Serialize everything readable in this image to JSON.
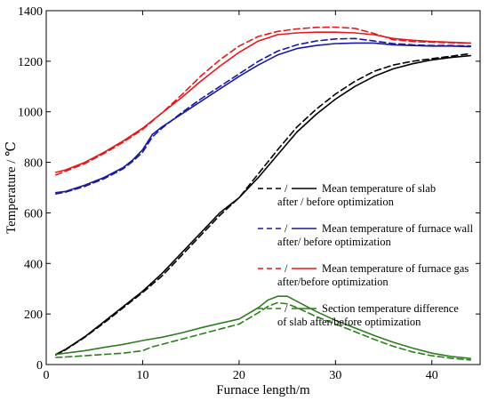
{
  "chart_data": {
    "type": "line",
    "xlabel": "Furnace length/m",
    "ylabel": "Temperature / ℃",
    "xlim": [
      0,
      45
    ],
    "ylim": [
      0,
      1400
    ],
    "xticks": [
      0,
      10,
      20,
      30,
      40
    ],
    "yticks": [
      0,
      200,
      400,
      600,
      800,
      1000,
      1200,
      1400
    ],
    "grid": false,
    "legend_position": "center-right",
    "legend": [
      {
        "marker": "/",
        "lines": [
          "Mean temperature of slab",
          "after / before optimization"
        ],
        "color": "#000000"
      },
      {
        "marker": "/",
        "lines": [
          "Mean temperature of furnace wall",
          "after/ before  optimization"
        ],
        "color": "#1a1a9e"
      },
      {
        "marker": "/",
        "lines": [
          "Mean temperature of furnace gas",
          "after/before optimization"
        ],
        "color": "#e31a1c"
      },
      {
        "marker": "/",
        "lines": [
          "Section temperature difference",
          "of slab after/before optimization"
        ],
        "color": "#2e7d1f"
      }
    ],
    "series": [
      {
        "key": "slab_after",
        "color": "#000000",
        "dash": false,
        "x": [
          1,
          2,
          4,
          6,
          8,
          10,
          12,
          14,
          16,
          18,
          20,
          22,
          24,
          26,
          28,
          30,
          32,
          34,
          36,
          38,
          40,
          42,
          44
        ],
        "y": [
          40,
          60,
          110,
          170,
          230,
          290,
          360,
          440,
          520,
          600,
          660,
          740,
          830,
          920,
          990,
          1050,
          1100,
          1140,
          1170,
          1190,
          1205,
          1215,
          1222
        ]
      },
      {
        "key": "slab_before",
        "color": "#000000",
        "dash": true,
        "x": [
          1,
          2,
          4,
          6,
          8,
          10,
          12,
          14,
          16,
          18,
          20,
          22,
          24,
          26,
          28,
          30,
          32,
          34,
          36,
          38,
          40,
          42,
          44
        ],
        "y": [
          38,
          58,
          108,
          165,
          225,
          285,
          350,
          430,
          510,
          590,
          660,
          755,
          850,
          940,
          1010,
          1070,
          1120,
          1160,
          1185,
          1200,
          1210,
          1220,
          1230
        ]
      },
      {
        "key": "wall_after",
        "color": "#1a1a9e",
        "dash": false,
        "x": [
          1,
          2,
          4,
          6,
          8,
          9,
          10,
          11,
          12,
          14,
          16,
          18,
          20,
          22,
          24,
          26,
          28,
          30,
          32,
          34,
          36,
          38,
          40,
          42,
          44
        ],
        "y": [
          680,
          685,
          710,
          740,
          780,
          810,
          850,
          910,
          940,
          990,
          1040,
          1090,
          1140,
          1185,
          1225,
          1250,
          1262,
          1270,
          1272,
          1272,
          1265,
          1262,
          1260,
          1260,
          1258
        ]
      },
      {
        "key": "wall_before",
        "color": "#1a1a9e",
        "dash": true,
        "x": [
          1,
          2,
          4,
          6,
          8,
          9,
          10,
          11,
          12,
          14,
          16,
          18,
          20,
          22,
          24,
          26,
          28,
          30,
          32,
          34,
          36,
          38,
          40,
          42,
          44
        ],
        "y": [
          675,
          682,
          705,
          735,
          775,
          805,
          840,
          900,
          935,
          995,
          1050,
          1100,
          1150,
          1200,
          1240,
          1265,
          1280,
          1288,
          1290,
          1280,
          1270,
          1265,
          1262,
          1262,
          1260
        ]
      },
      {
        "key": "gas_after",
        "color": "#e31a1c",
        "dash": false,
        "x": [
          1,
          2,
          4,
          6,
          8,
          10,
          12,
          14,
          16,
          18,
          20,
          22,
          24,
          26,
          28,
          30,
          32,
          34,
          36,
          38,
          40,
          42,
          44
        ],
        "y": [
          760,
          770,
          800,
          840,
          885,
          935,
          995,
          1055,
          1120,
          1180,
          1235,
          1280,
          1305,
          1312,
          1315,
          1315,
          1312,
          1305,
          1290,
          1283,
          1278,
          1275,
          1272
        ]
      },
      {
        "key": "gas_before",
        "color": "#e31a1c",
        "dash": true,
        "x": [
          1,
          2,
          4,
          6,
          8,
          10,
          12,
          14,
          16,
          18,
          20,
          22,
          24,
          26,
          28,
          30,
          32,
          34,
          36,
          38,
          40,
          42,
          44
        ],
        "y": [
          750,
          765,
          795,
          835,
          880,
          930,
          995,
          1065,
          1140,
          1205,
          1260,
          1298,
          1318,
          1328,
          1334,
          1335,
          1330,
          1310,
          1285,
          1278,
          1275,
          1273,
          1272
        ]
      },
      {
        "key": "diff_after",
        "color": "#2e7d1f",
        "dash": false,
        "x": [
          1,
          2,
          4,
          6,
          8,
          10,
          12,
          14,
          16,
          18,
          20,
          22,
          23,
          24,
          25,
          26,
          28,
          30,
          32,
          34,
          36,
          38,
          40,
          42,
          44
        ],
        "y": [
          40,
          45,
          55,
          68,
          80,
          95,
          108,
          125,
          145,
          163,
          180,
          225,
          255,
          270,
          270,
          250,
          210,
          175,
          145,
          115,
          88,
          65,
          45,
          32,
          24
        ]
      },
      {
        "key": "diff_before",
        "color": "#2e7d1f",
        "dash": true,
        "x": [
          1,
          2,
          4,
          6,
          8,
          10,
          11,
          12,
          14,
          16,
          18,
          20,
          22,
          23,
          24,
          25,
          26,
          28,
          30,
          32,
          34,
          36,
          38,
          40,
          42,
          44
        ],
        "y": [
          28,
          30,
          35,
          40,
          45,
          55,
          70,
          80,
          100,
          120,
          140,
          160,
          205,
          230,
          245,
          240,
          225,
          190,
          160,
          130,
          100,
          72,
          50,
          35,
          25,
          18
        ]
      }
    ]
  }
}
